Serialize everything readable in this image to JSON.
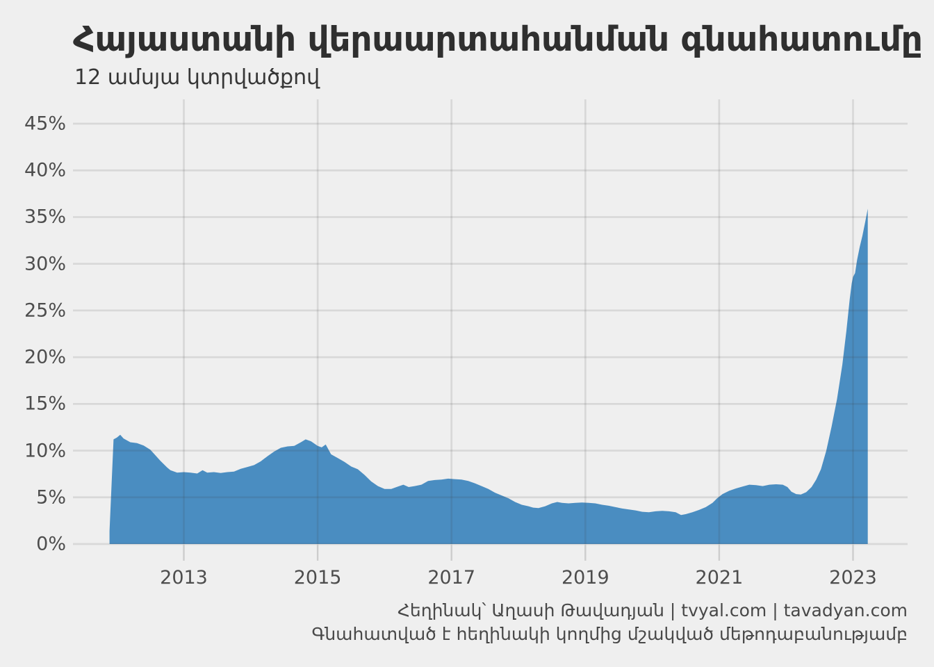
{
  "chart_data": {
    "type": "area",
    "title": "Հայաստանի վերաարտահանման գնահատումը",
    "subtitle": "12 ամսյա կտրվածքով",
    "caption_line1": "Հեղինակ՝ Աղասի Թավադյան   |   tvyal.com   |   tavadyan.com",
    "caption_line2": "Գնահատված է հեղինակի կողմից մշակված մեթոդաբանությամբ",
    "series_name": "re-export-share",
    "xlabel": "",
    "ylabel": "",
    "legend_position": "none",
    "grid": true,
    "xlim": [
      2011.34,
      2023.81
    ],
    "ylim": [
      0,
      47.5
    ],
    "x_ticks": [
      2013,
      2015,
      2017,
      2019,
      2021,
      2023
    ],
    "y_ticks": [
      {
        "value": 0,
        "label": "0%"
      },
      {
        "value": 5,
        "label": "5%"
      },
      {
        "value": 10,
        "label": "10%"
      },
      {
        "value": 15,
        "label": "15%"
      },
      {
        "value": 20,
        "label": "20%"
      },
      {
        "value": 25,
        "label": "25%"
      },
      {
        "value": 30,
        "label": "30%"
      },
      {
        "value": 35,
        "label": "35%"
      },
      {
        "value": 40,
        "label": "40%"
      },
      {
        "value": 45,
        "label": "45%"
      }
    ],
    "points": [
      [
        2011.89,
        1.4
      ],
      [
        2011.95,
        11.2
      ],
      [
        2012.0,
        11.4
      ],
      [
        2012.05,
        11.7
      ],
      [
        2012.1,
        11.3
      ],
      [
        2012.2,
        10.9
      ],
      [
        2012.3,
        10.8
      ],
      [
        2012.4,
        10.55
      ],
      [
        2012.5,
        10.1
      ],
      [
        2012.55,
        9.7
      ],
      [
        2012.65,
        8.9
      ],
      [
        2012.75,
        8.2
      ],
      [
        2012.8,
        7.9
      ],
      [
        2012.9,
        7.65
      ],
      [
        2013.0,
        7.7
      ],
      [
        2013.1,
        7.65
      ],
      [
        2013.2,
        7.55
      ],
      [
        2013.28,
        7.9
      ],
      [
        2013.35,
        7.65
      ],
      [
        2013.45,
        7.7
      ],
      [
        2013.55,
        7.6
      ],
      [
        2013.65,
        7.7
      ],
      [
        2013.75,
        7.75
      ],
      [
        2013.85,
        8.05
      ],
      [
        2013.95,
        8.25
      ],
      [
        2014.05,
        8.45
      ],
      [
        2014.15,
        8.85
      ],
      [
        2014.25,
        9.4
      ],
      [
        2014.35,
        9.9
      ],
      [
        2014.45,
        10.3
      ],
      [
        2014.55,
        10.45
      ],
      [
        2014.65,
        10.5
      ],
      [
        2014.75,
        10.9
      ],
      [
        2014.82,
        11.2
      ],
      [
        2014.9,
        11.0
      ],
      [
        2015.0,
        10.5
      ],
      [
        2015.06,
        10.35
      ],
      [
        2015.12,
        10.65
      ],
      [
        2015.2,
        9.6
      ],
      [
        2015.3,
        9.2
      ],
      [
        2015.4,
        8.8
      ],
      [
        2015.5,
        8.3
      ],
      [
        2015.6,
        8.0
      ],
      [
        2015.7,
        7.4
      ],
      [
        2015.8,
        6.7
      ],
      [
        2015.9,
        6.2
      ],
      [
        2016.0,
        5.9
      ],
      [
        2016.1,
        5.9
      ],
      [
        2016.2,
        6.15
      ],
      [
        2016.28,
        6.35
      ],
      [
        2016.36,
        6.1
      ],
      [
        2016.45,
        6.2
      ],
      [
        2016.55,
        6.35
      ],
      [
        2016.65,
        6.75
      ],
      [
        2016.75,
        6.85
      ],
      [
        2016.85,
        6.9
      ],
      [
        2016.95,
        7.0
      ],
      [
        2017.05,
        6.95
      ],
      [
        2017.15,
        6.9
      ],
      [
        2017.25,
        6.75
      ],
      [
        2017.35,
        6.5
      ],
      [
        2017.45,
        6.2
      ],
      [
        2017.55,
        5.9
      ],
      [
        2017.65,
        5.5
      ],
      [
        2017.75,
        5.2
      ],
      [
        2017.85,
        4.9
      ],
      [
        2017.95,
        4.5
      ],
      [
        2018.05,
        4.2
      ],
      [
        2018.15,
        4.05
      ],
      [
        2018.22,
        3.9
      ],
      [
        2018.3,
        3.85
      ],
      [
        2018.4,
        4.05
      ],
      [
        2018.5,
        4.35
      ],
      [
        2018.58,
        4.5
      ],
      [
        2018.65,
        4.4
      ],
      [
        2018.75,
        4.35
      ],
      [
        2018.85,
        4.4
      ],
      [
        2018.95,
        4.45
      ],
      [
        2019.05,
        4.4
      ],
      [
        2019.15,
        4.35
      ],
      [
        2019.25,
        4.2
      ],
      [
        2019.35,
        4.1
      ],
      [
        2019.45,
        3.95
      ],
      [
        2019.55,
        3.8
      ],
      [
        2019.65,
        3.7
      ],
      [
        2019.75,
        3.6
      ],
      [
        2019.85,
        3.45
      ],
      [
        2019.95,
        3.4
      ],
      [
        2020.05,
        3.5
      ],
      [
        2020.15,
        3.55
      ],
      [
        2020.25,
        3.5
      ],
      [
        2020.35,
        3.4
      ],
      [
        2020.43,
        3.1
      ],
      [
        2020.5,
        3.2
      ],
      [
        2020.6,
        3.4
      ],
      [
        2020.7,
        3.65
      ],
      [
        2020.8,
        3.95
      ],
      [
        2020.9,
        4.4
      ],
      [
        2020.97,
        4.9
      ],
      [
        2021.05,
        5.35
      ],
      [
        2021.15,
        5.7
      ],
      [
        2021.25,
        5.95
      ],
      [
        2021.35,
        6.15
      ],
      [
        2021.45,
        6.35
      ],
      [
        2021.55,
        6.3
      ],
      [
        2021.65,
        6.2
      ],
      [
        2021.75,
        6.35
      ],
      [
        2021.85,
        6.4
      ],
      [
        2021.95,
        6.35
      ],
      [
        2022.02,
        6.1
      ],
      [
        2022.08,
        5.6
      ],
      [
        2022.15,
        5.35
      ],
      [
        2022.22,
        5.3
      ],
      [
        2022.3,
        5.55
      ],
      [
        2022.38,
        6.1
      ],
      [
        2022.45,
        6.9
      ],
      [
        2022.52,
        8.0
      ],
      [
        2022.6,
        10.0
      ],
      [
        2022.68,
        12.6
      ],
      [
        2022.76,
        15.5
      ],
      [
        2022.84,
        19.2
      ],
      [
        2022.9,
        22.8
      ],
      [
        2022.95,
        26.2
      ],
      [
        2022.98,
        27.9
      ],
      [
        2023.0,
        28.6
      ],
      [
        2023.03,
        29.0
      ],
      [
        2023.06,
        30.4
      ],
      [
        2023.1,
        31.8
      ],
      [
        2023.14,
        33.0
      ],
      [
        2023.18,
        34.4
      ],
      [
        2023.22,
        35.9
      ]
    ],
    "colors": {
      "area": "#4a8dc1",
      "background": "#efefef",
      "gridline": "#d9d9d9",
      "tick_mark": "#cdcdcd",
      "axis_text": "#4d4d4d",
      "title_text": "#2f2f2f",
      "caption_text": "#484848"
    }
  }
}
